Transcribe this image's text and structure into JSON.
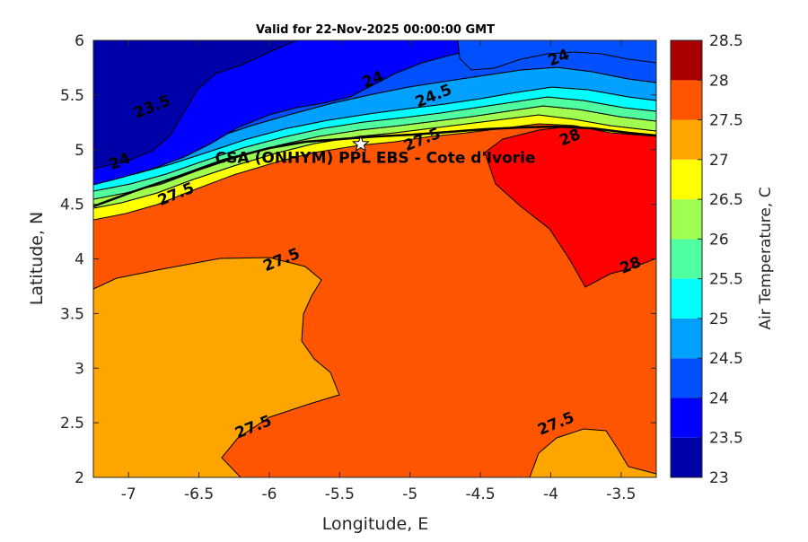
{
  "chart_data": {
    "type": "heatmap",
    "title": "Valid for 22-Nov-2025 00:00:00 GMT",
    "xlabel": "Longitude, E",
    "ylabel": "Latitude, N",
    "xlim": [
      -7.25,
      -3.25
    ],
    "ylim": [
      2,
      6
    ],
    "xticks": [
      "-7",
      "-6.5",
      "-6",
      "-5.5",
      "-5",
      "-4.5",
      "-4",
      "-3.5"
    ],
    "yticks": [
      "2",
      "2.5",
      "3",
      "3.5",
      "4",
      "4.5",
      "5",
      "5.5",
      "6"
    ],
    "colorbar": {
      "label": "Air Temperature, C",
      "ticks": [
        "23",
        "23.5",
        "24",
        "24.5",
        "25",
        "25.5",
        "26",
        "26.5",
        "27",
        "27.5",
        "28",
        "28.5"
      ],
      "levels": [
        23,
        23.5,
        24,
        24.5,
        25,
        25.5,
        26,
        26.5,
        27,
        27.5,
        28,
        28.5
      ],
      "colors": [
        "#0000a8",
        "#0000ff",
        "#0050ff",
        "#00a0ff",
        "#00ffff",
        "#50ffa0",
        "#a0ff50",
        "#ffff00",
        "#ffa500",
        "#ff5500",
        "#ff0000",
        "#a80000"
      ]
    },
    "site": {
      "label": "CSA (ONHYM) PPL EBS  - Cote d'Ivorie",
      "lon": -5.35,
      "lat": 5.05
    },
    "contour_labels": [
      {
        "text": "23.5",
        "lon": -6.82,
        "lat": 5.35
      },
      {
        "text": "24",
        "lon": -5.25,
        "lat": 5.6
      },
      {
        "text": "24",
        "lon": -3.93,
        "lat": 5.8
      },
      {
        "text": "24",
        "lon": -7.05,
        "lat": 4.85
      },
      {
        "text": "24.5",
        "lon": -4.82,
        "lat": 5.45
      },
      {
        "text": "27.5",
        "lon": -4.9,
        "lat": 5.05
      },
      {
        "text": "28",
        "lon": -3.85,
        "lat": 5.07
      },
      {
        "text": "27.5",
        "lon": -6.65,
        "lat": 4.55
      },
      {
        "text": "27.5",
        "lon": -5.9,
        "lat": 3.95
      },
      {
        "text": "28",
        "lon": -3.42,
        "lat": 3.9
      },
      {
        "text": "27.5",
        "lon": -6.1,
        "lat": 2.42
      },
      {
        "text": "27.5",
        "lon": -3.95,
        "lat": 2.45
      }
    ]
  }
}
